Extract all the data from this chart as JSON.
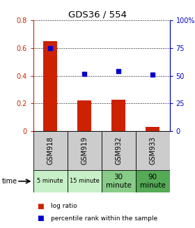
{
  "title": "GDS36 / 554",
  "samples": [
    "GSM918",
    "GSM919",
    "GSM932",
    "GSM933"
  ],
  "time_labels": [
    "5 minute",
    "15 minute",
    "30\nminute",
    "90\nminute"
  ],
  "log_ratio": [
    0.651,
    0.221,
    0.228,
    0.03
  ],
  "percentile_rank": [
    75.0,
    52.0,
    54.0,
    51.0
  ],
  "bar_color": "#cc2200",
  "dot_color": "#0000cc",
  "ylim_left": [
    0,
    0.8
  ],
  "ylim_right": [
    0,
    100
  ],
  "yticks_left": [
    0,
    0.2,
    0.4,
    0.6,
    0.8
  ],
  "yticks_right": [
    0,
    25,
    50,
    75,
    100
  ],
  "ytick_labels_left": [
    "0",
    "0.2",
    "0.4",
    "0.6",
    "0.8"
  ],
  "ytick_labels_right": [
    "0",
    "25",
    "50",
    "75",
    "100%"
  ],
  "bar_width": 0.4,
  "legend_labels": [
    "log ratio",
    "percentile rank within the sample"
  ],
  "bg_table_gsm": "#cccccc",
  "bg_time_light": "#c8f0c8",
  "bg_time_med": "#88cc88",
  "bg_time_dark": "#55aa55",
  "time_bg_colors": [
    "#c8f0c8",
    "#c8f0c8",
    "#88cc88",
    "#55aa55"
  ]
}
